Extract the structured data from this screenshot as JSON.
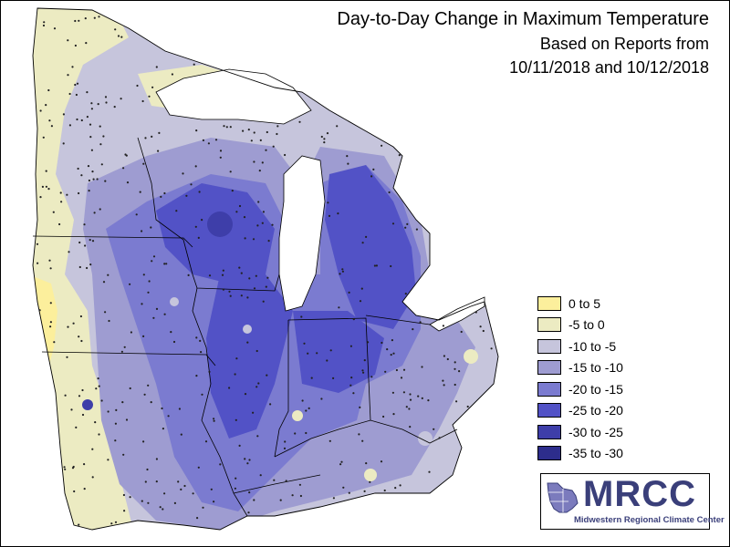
{
  "title": {
    "line1": "Day-to-Day Change in Maximum Temperature",
    "line2": "Based on Reports from",
    "line3": "10/11/2018 and 10/12/2018"
  },
  "legend": [
    {
      "label": "0 to 5",
      "color": "#fcef9c"
    },
    {
      "label": "-5 to 0",
      "color": "#ecebc2"
    },
    {
      "label": "-10 to -5",
      "color": "#c6c5dc"
    },
    {
      "label": "-15 to -10",
      "color": "#9e9cd1"
    },
    {
      "label": "-20 to -15",
      "color": "#7b7bd0"
    },
    {
      "label": "-25 to -20",
      "color": "#5252c6"
    },
    {
      "label": "-30 to -25",
      "color": "#3e3ea9"
    },
    {
      "label": "-35 to -30",
      "color": "#2d2d8c"
    }
  ],
  "logo": {
    "name": "MRCC",
    "subtitle": "Midwestern Regional Climate Center"
  },
  "map": {
    "region": "Midwest",
    "states": [
      "Minnesota",
      "Iowa",
      "Missouri",
      "Wisconsin",
      "Illinois",
      "Michigan",
      "Indiana",
      "Ohio",
      "Kentucky"
    ],
    "water_color": "#ffffff"
  }
}
